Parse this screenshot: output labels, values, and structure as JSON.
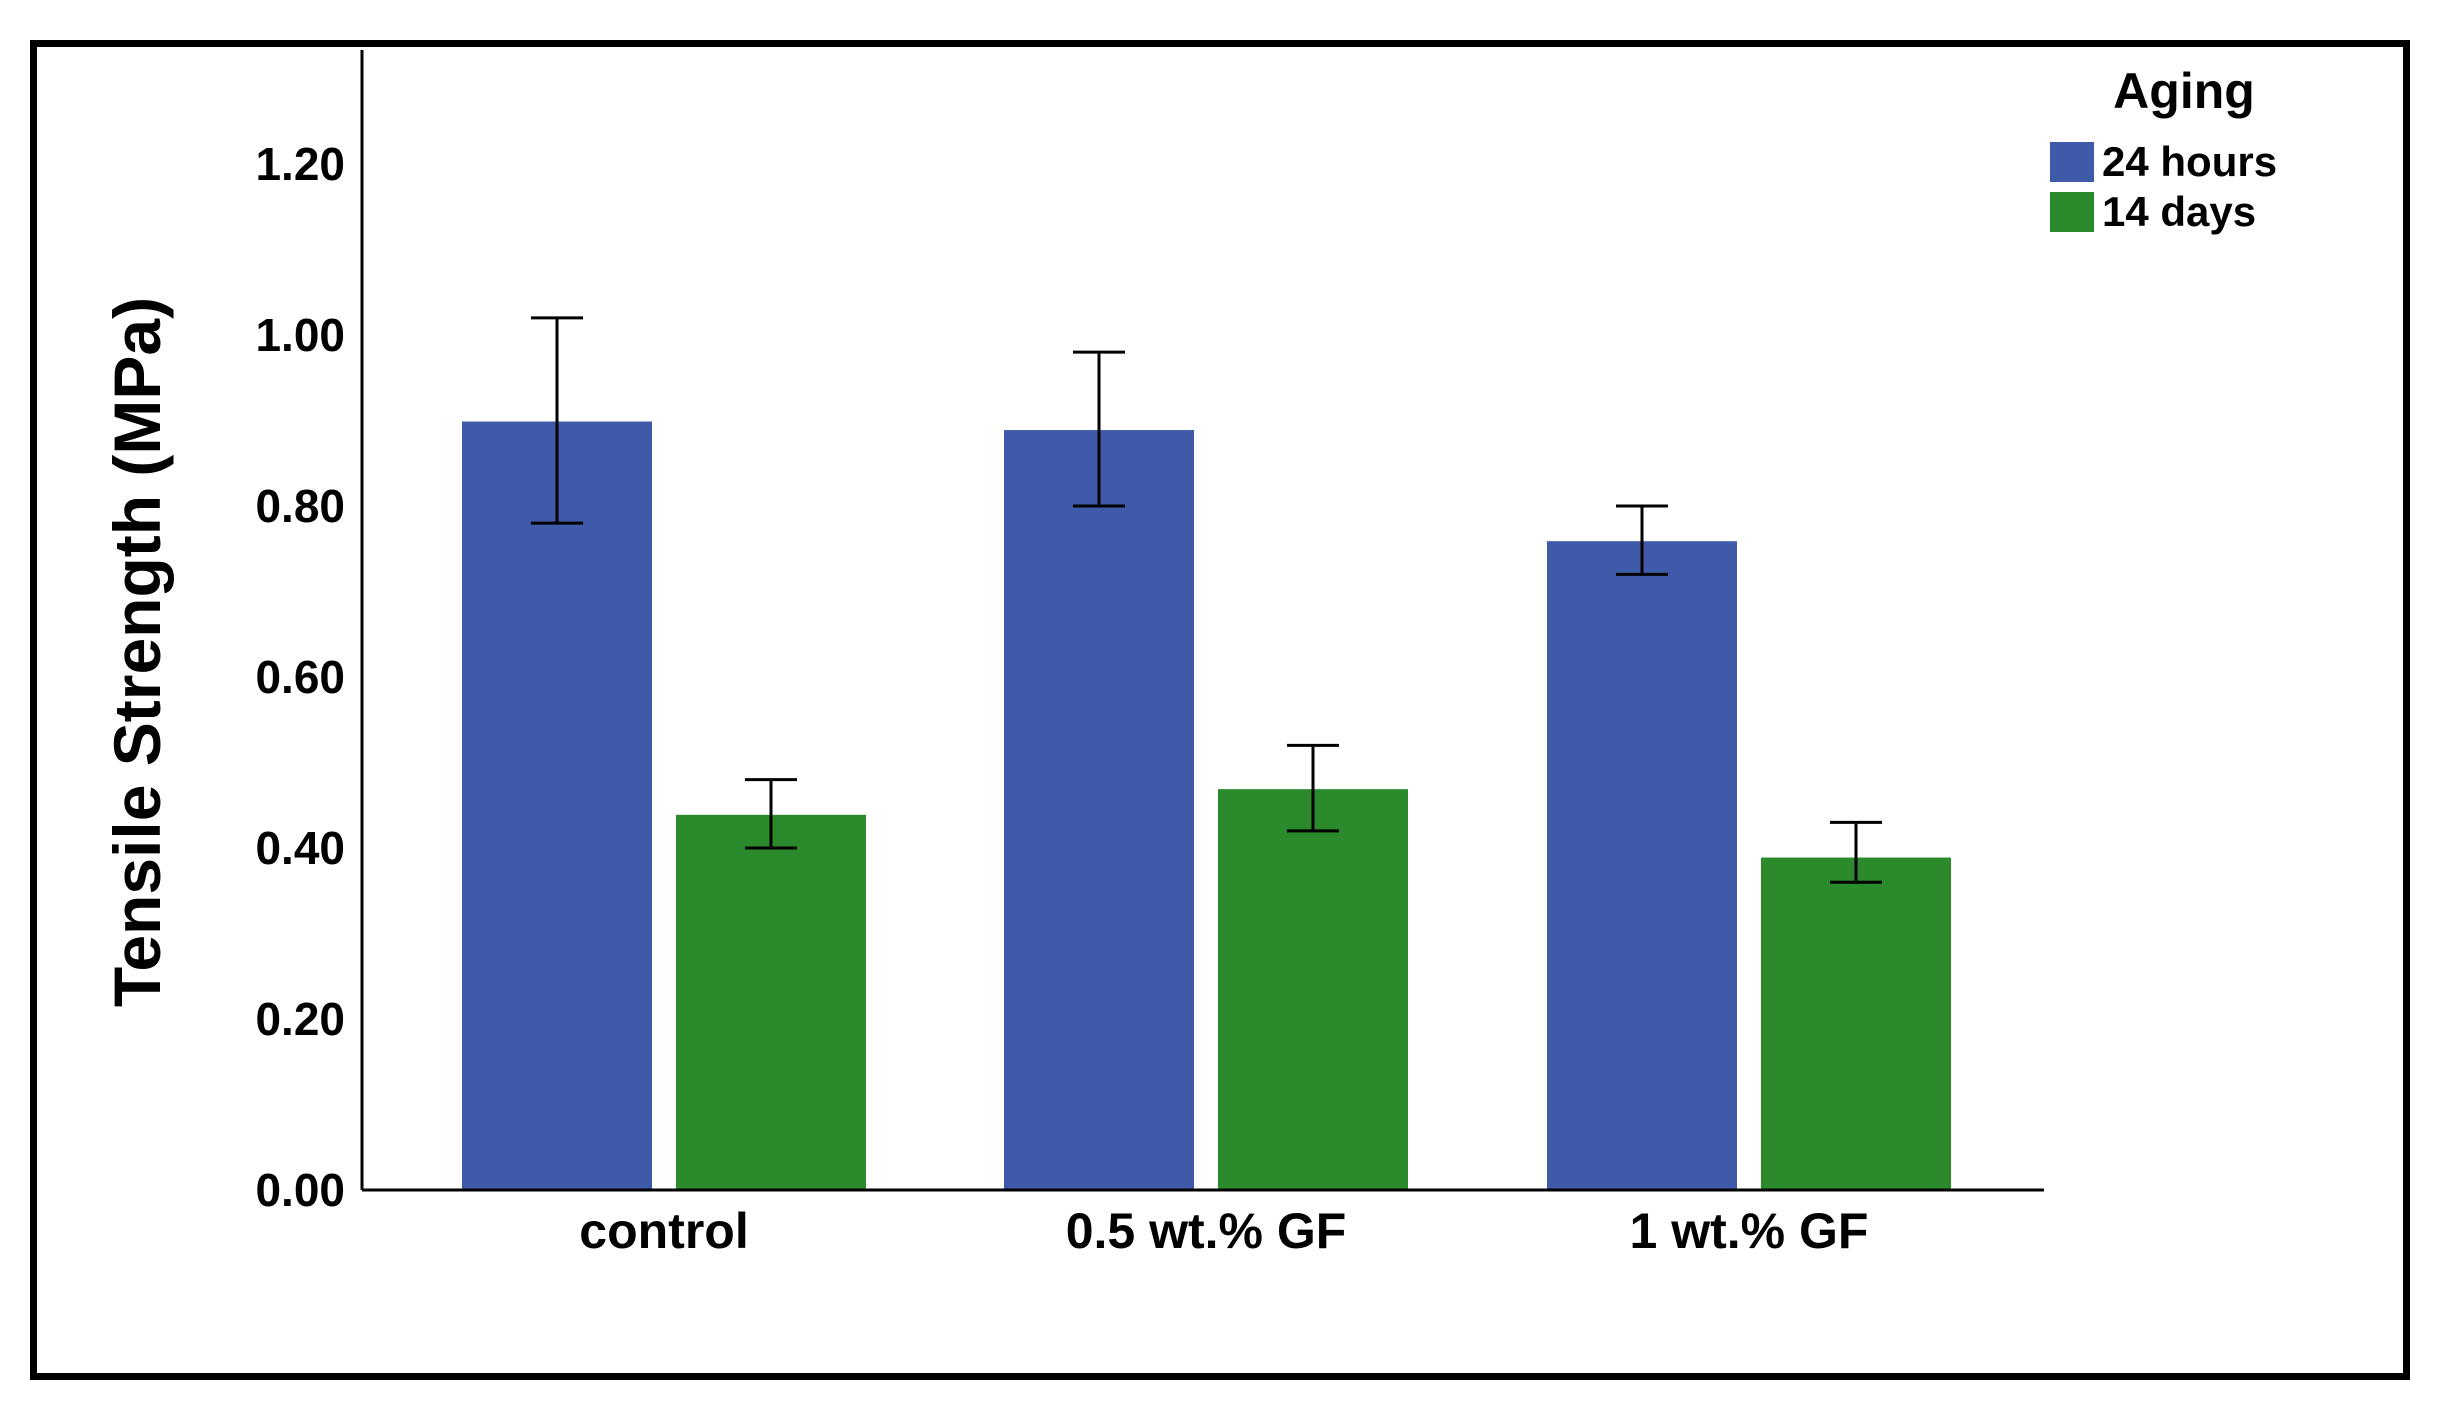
{
  "chart_data": {
    "type": "bar",
    "title": "",
    "xlabel": "",
    "ylabel": "Tensile Strength (MPa)",
    "ylim": [
      0,
      1.3
    ],
    "yticks": [
      "0.00",
      "0.20",
      "0.40",
      "0.60",
      "0.80",
      "1.00",
      "1.20"
    ],
    "grid": false,
    "categories": [
      "control",
      "0.5 wt.% GF",
      "1 wt.% GF"
    ],
    "legend": {
      "title": "Aging",
      "position": "top-right"
    },
    "series": [
      {
        "name": "24 hours",
        "color": "#3f5aa8",
        "values": [
          0.9,
          0.89,
          0.76
        ],
        "error_low": [
          0.78,
          0.8,
          0.72
        ],
        "error_high": [
          1.02,
          0.98,
          0.8
        ]
      },
      {
        "name": "14 days",
        "color": "#2b8a2b",
        "values": [
          0.44,
          0.47,
          0.39
        ],
        "error_low": [
          0.4,
          0.42,
          0.36
        ],
        "error_high": [
          0.48,
          0.52,
          0.43
        ]
      }
    ]
  }
}
